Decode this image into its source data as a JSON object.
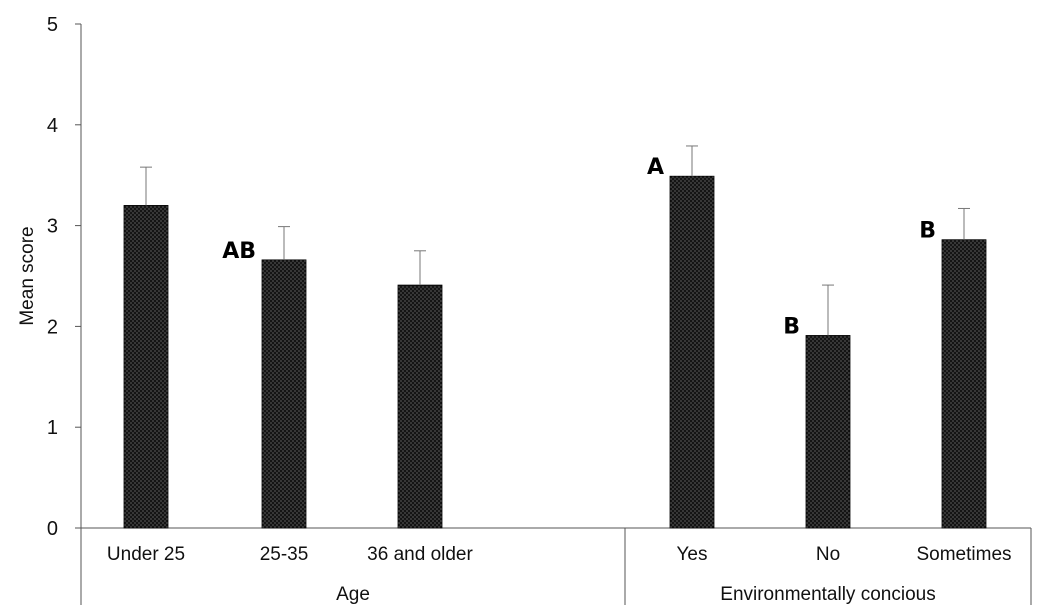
{
  "chart_data": {
    "type": "bar",
    "ylabel": "Mean  score",
    "ylim": [
      0,
      5
    ],
    "yticks": [
      "0",
      "1",
      "2",
      "3",
      "4",
      "5"
    ],
    "grid": false,
    "legend": "none",
    "bar_color": "#1a1a1a",
    "groups": [
      {
        "label": "Age",
        "categories": [
          "Under 25",
          "25-35",
          "36 and older"
        ],
        "values": [
          3.2,
          2.66,
          2.41
        ],
        "errors": [
          0.38,
          0.33,
          0.34
        ],
        "annotations": [
          "",
          "AB",
          ""
        ]
      },
      {
        "label": "Environmentally concious",
        "categories": [
          "Yes",
          "No",
          "Sometimes"
        ],
        "values": [
          3.49,
          1.91,
          2.86
        ],
        "errors": [
          0.3,
          0.5,
          0.31
        ],
        "annotations": [
          "A",
          "B",
          "B"
        ]
      }
    ]
  }
}
